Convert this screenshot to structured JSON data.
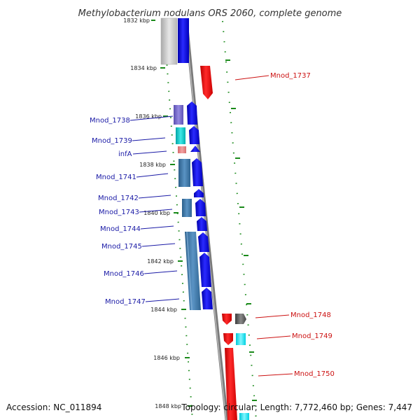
{
  "title": "Methylobacterium nodulans ORS 2060, complete genome",
  "footer": {
    "accession": "Accession: NC_011894",
    "topology": "Topology: circular; Length: 7,772,460 bp; Genes: 7,447"
  },
  "kbp_ticks": [
    "1832 kbp",
    "1834 kbp",
    "1836 kbp",
    "1838 kbp",
    "1840 kbp",
    "1842 kbp",
    "1844 kbp",
    "1846 kbp",
    "1848 kbp"
  ],
  "genes_left": [
    "Mnod_1738",
    "Mnod_1739",
    "infA",
    "Mnod_1741",
    "Mnod_1742",
    "Mnod_1743",
    "Mnod_1744",
    "Mnod_1745",
    "Mnod_1746",
    "Mnod_1747"
  ],
  "genes_right": [
    "Mnod_1737",
    "Mnod_1748",
    "Mnod_1749",
    "Mnod_1750"
  ],
  "colors": {
    "forward_strand": "#0000ee",
    "reverse_strand": "#ee0000",
    "label_left": "#1a1aa6",
    "label_right": "#cc1111",
    "tick": "#1a8a1a",
    "backbone": "#888888"
  }
}
